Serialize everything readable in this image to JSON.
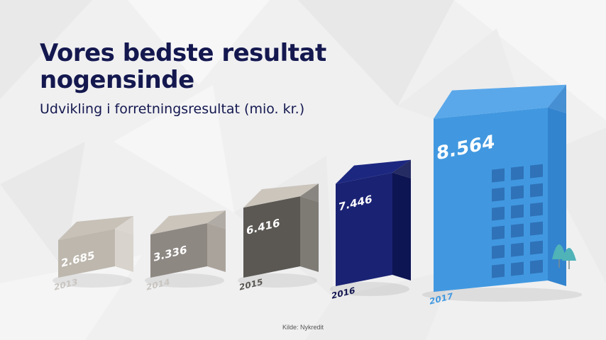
{
  "page": {
    "title": "Vores bedste resultat nogensinde",
    "subtitle": "Udvikling i forretningsresultat (mio. kr.)",
    "source": "Kilde: Nykredit"
  },
  "chart_data": {
    "type": "bar",
    "title": "Vores bedste resultat nogensinde",
    "subtitle": "Udvikling i forretningsresultat (mio. kr.)",
    "xlabel": "",
    "ylabel": "",
    "categories": [
      "2013",
      "2014",
      "2015",
      "2016",
      "2017"
    ],
    "values": [
      2685,
      3336,
      6416,
      7446,
      8564
    ],
    "value_labels": [
      "2.685",
      "3.336",
      "6.416",
      "7.446",
      "8.564"
    ],
    "style": "isometric buildings",
    "colors": [
      {
        "front": "#bdb7ad",
        "side": "#d8d3cc",
        "roof": "#c7c1b7",
        "label": "#c9c5c0"
      },
      {
        "front": "#8e8883",
        "side": "#aaa39c",
        "roof": "#cbc5bc",
        "label": "#c9c5c0"
      },
      {
        "front": "#5b5853",
        "side": "#7e7b75",
        "roof": "#cbc5bc",
        "label": "#5b5853"
      },
      {
        "front": "#1a2274",
        "side": "#0e1553",
        "roof": "#1c2780",
        "label": "#14184f"
      },
      {
        "front": "#4198e0",
        "side": "#3384cf",
        "roof": "#5aa8ea",
        "label": "#4198e0"
      }
    ]
  }
}
